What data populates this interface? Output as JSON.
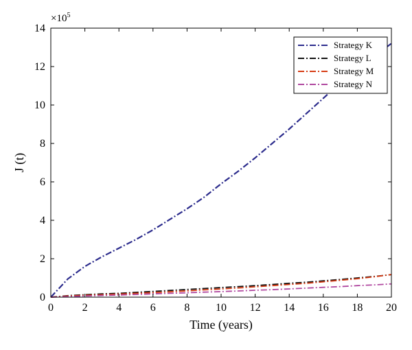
{
  "chart_data": {
    "type": "line",
    "xlabel": "Time (years)",
    "ylabel": "J (t)",
    "xlim": [
      0,
      20
    ],
    "ylim": [
      0,
      14
    ],
    "xticks": [
      "0",
      "2",
      "4",
      "6",
      "8",
      "10",
      "12",
      "14",
      "16",
      "18",
      "20"
    ],
    "yticks": [
      "0",
      "2",
      "4",
      "6",
      "8",
      "10",
      "12",
      "14"
    ],
    "y_multiplier": "×10",
    "y_multiplier_exponent": "5",
    "grid": false,
    "legend_position": "top-right",
    "x": [
      0,
      1,
      2,
      3,
      4,
      5,
      6,
      7,
      8,
      9,
      10,
      11,
      12,
      13,
      14,
      15,
      16,
      17,
      18,
      19,
      20
    ],
    "series": [
      {
        "name": "Strategy K",
        "color": "#2b2b8c",
        "dash": "dash-dot",
        "values": [
          0,
          0.95,
          1.6,
          2.1,
          2.55,
          3.0,
          3.5,
          4.05,
          4.6,
          5.2,
          5.9,
          6.55,
          7.25,
          8.0,
          8.75,
          9.55,
          10.35,
          11.15,
          11.95,
          12.55,
          13.2
        ]
      },
      {
        "name": "Strategy L",
        "color": "#111111",
        "dash": "dash-dot",
        "values": [
          0,
          0.08,
          0.13,
          0.17,
          0.2,
          0.25,
          0.3,
          0.35,
          0.4,
          0.45,
          0.5,
          0.55,
          0.6,
          0.66,
          0.72,
          0.78,
          0.85,
          0.92,
          1.0,
          1.08,
          1.17
        ]
      },
      {
        "name": "Strategy M",
        "color": "#d63a12",
        "dash": "dash-dot",
        "values": [
          0,
          0.06,
          0.1,
          0.13,
          0.16,
          0.2,
          0.24,
          0.28,
          0.33,
          0.38,
          0.43,
          0.48,
          0.54,
          0.6,
          0.66,
          0.72,
          0.8,
          0.88,
          0.96,
          1.06,
          1.18
        ]
      },
      {
        "name": "Strategy N",
        "color": "#b0479f",
        "dash": "dash-dot",
        "values": [
          0,
          0.03,
          0.06,
          0.09,
          0.11,
          0.14,
          0.17,
          0.2,
          0.23,
          0.26,
          0.29,
          0.32,
          0.36,
          0.39,
          0.43,
          0.47,
          0.51,
          0.55,
          0.6,
          0.64,
          0.69
        ]
      }
    ]
  }
}
